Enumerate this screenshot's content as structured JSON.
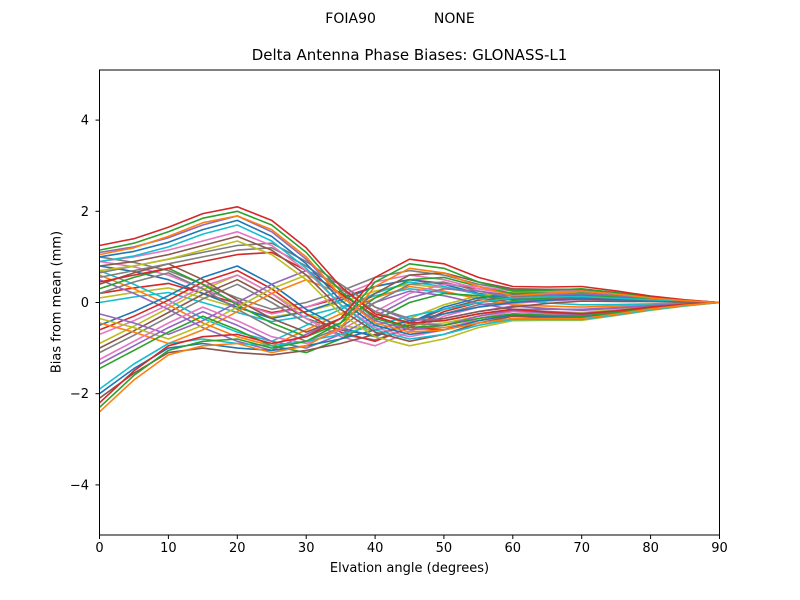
{
  "header": {
    "left_label": "FOIA90",
    "right_label": "NONE"
  },
  "chart_data": {
    "type": "line",
    "title": "Delta Antenna Phase Biases: GLONASS-L1",
    "suptitle": "FOIA90          NONE",
    "xlabel": "Elvation angle (degrees)",
    "ylabel": "Bias from mean (mm)",
    "xlim": [
      0,
      90
    ],
    "ylim": [
      -5.1,
      5.1
    ],
    "xticks": [
      0,
      10,
      20,
      30,
      40,
      50,
      60,
      70,
      80,
      90
    ],
    "xtick_labels": [
      "0",
      "10",
      "20",
      "30",
      "40",
      "50",
      "60",
      "70",
      "80",
      "90"
    ],
    "yticks": [
      -4,
      -2,
      0,
      2,
      4
    ],
    "ytick_labels": [
      "−4",
      "−2",
      "0",
      "2",
      "4"
    ],
    "grid": false,
    "legend": null,
    "line_width": 1.6,
    "color_cycle": [
      "#1f77b4",
      "#ff7f0e",
      "#2ca02c",
      "#d62728",
      "#9467bd",
      "#8c564b",
      "#e377c2",
      "#7f7f7f",
      "#bcbd22",
      "#17becf"
    ],
    "x": [
      0,
      5,
      10,
      15,
      20,
      25,
      30,
      35,
      40,
      45,
      50,
      55,
      60,
      65,
      70,
      75,
      80,
      85,
      90
    ],
    "variant_offsets": [
      0,
      0.1,
      -0.1
    ],
    "offset_taper": [
      1,
      1,
      1,
      1,
      1,
      1,
      1,
      1,
      1,
      1,
      1,
      1,
      1,
      0.7,
      0.5,
      0.35,
      0.2,
      0.1,
      0
    ],
    "shapes": [
      {
        "name": "mid-ripple",
        "colors": [
          "#bcbd22",
          "#d62728",
          "#17becf"
        ],
        "y": [
          0.1,
          0.22,
          0.32,
          0.1,
          -0.12,
          -0.32,
          -0.2,
          0.0,
          0.25,
          0.4,
          0.32,
          0.2,
          0.1,
          0.12,
          0.14,
          0.1,
          0.06,
          0.02,
          0
        ]
      },
      {
        "name": "upper-drift",
        "colors": [
          "#e377c2",
          "#7f7f7f",
          "#1f77b4"
        ],
        "y": [
          0.9,
          0.78,
          0.6,
          0.3,
          0.0,
          -0.25,
          -0.1,
          0.15,
          0.45,
          0.6,
          0.5,
          0.3,
          0.18,
          0.2,
          0.22,
          0.16,
          0.1,
          0.04,
          0
        ]
      },
      {
        "name": "low-swing",
        "colors": [
          "#8c564b",
          "#bcbd22",
          "#7f7f7f"
        ],
        "y": [
          -1.0,
          -0.62,
          -0.22,
          0.18,
          0.5,
          0.1,
          -0.35,
          -0.6,
          -0.72,
          -0.45,
          -0.15,
          0.05,
          0.12,
          0.14,
          0.16,
          0.12,
          0.07,
          0.03,
          0
        ]
      },
      {
        "name": "braid-down",
        "colors": [
          "#ff7f0e",
          "#17becf",
          "#9467bd"
        ],
        "y": [
          0.6,
          0.3,
          -0.05,
          -0.45,
          -0.75,
          -0.95,
          -0.6,
          -0.25,
          0.1,
          0.35,
          0.25,
          0.08,
          -0.05,
          -0.08,
          -0.1,
          -0.08,
          -0.05,
          -0.02,
          0
        ]
      },
      {
        "name": "braid-up",
        "colors": [
          "#d62728",
          "#1f77b4",
          "#e377c2"
        ],
        "y": [
          -0.6,
          -0.3,
          0.05,
          0.45,
          0.7,
          0.3,
          -0.25,
          -0.65,
          -0.85,
          -0.55,
          -0.2,
          0.0,
          0.08,
          0.1,
          0.12,
          0.09,
          0.05,
          0.02,
          0
        ]
      },
      {
        "name": "zigzag-a",
        "colors": [
          "#2ca02c",
          "#8c564b",
          "#7f7f7f"
        ],
        "y": [
          0.3,
          0.55,
          0.75,
          0.4,
          -0.05,
          -0.45,
          -0.75,
          -0.45,
          0.1,
          0.5,
          0.55,
          0.35,
          0.2,
          0.22,
          0.24,
          0.18,
          0.1,
          0.04,
          0
        ]
      },
      {
        "name": "zigzag-b",
        "colors": [
          "#bcbd22",
          "#9467bd",
          "#ff7f0e"
        ],
        "y": [
          -0.35,
          -0.55,
          -0.8,
          -0.5,
          -0.1,
          0.3,
          0.6,
          0.3,
          -0.2,
          -0.5,
          -0.45,
          -0.3,
          -0.18,
          -0.2,
          -0.22,
          -0.16,
          -0.09,
          -0.04,
          0
        ]
      },
      {
        "name": "low-braid",
        "colors": [
          "#9467bd",
          "#e377c2",
          "#2ca02c"
        ],
        "y": [
          -1.35,
          -0.95,
          -0.55,
          -0.2,
          -0.5,
          -0.85,
          -1.0,
          -0.7,
          -0.3,
          0.1,
          0.3,
          0.25,
          0.15,
          0.17,
          0.2,
          0.15,
          0.09,
          0.04,
          0
        ]
      },
      {
        "name": "low-flat",
        "colors": [
          "#1f77b4",
          "#17becf",
          "#8c564b"
        ],
        "y": [
          -2.0,
          -1.45,
          -1.0,
          -0.9,
          -1.0,
          -1.05,
          -0.95,
          -0.8,
          -0.6,
          -0.4,
          -0.25,
          -0.1,
          0.0,
          0.05,
          0.08,
          0.06,
          0.04,
          0.02,
          0
        ]
      },
      {
        "name": "gray-peak",
        "colors": [
          "#7f7f7f",
          "#7f7f7f",
          "#d62728"
        ],
        "y": [
          0.55,
          0.7,
          0.85,
          1.0,
          1.15,
          1.2,
          0.8,
          0.3,
          -0.2,
          -0.45,
          -0.5,
          -0.35,
          -0.25,
          -0.27,
          -0.29,
          -0.21,
          -0.12,
          -0.05,
          0
        ]
      },
      {
        "name": "peak-low",
        "colors": [
          "#8c564b",
          "#e377c2",
          "#bcbd22"
        ],
        "y": [
          0.8,
          0.9,
          1.05,
          1.25,
          1.45,
          1.15,
          0.6,
          -0.15,
          -0.65,
          -0.85,
          -0.7,
          -0.45,
          -0.3,
          -0.32,
          -0.34,
          -0.25,
          -0.15,
          -0.07,
          0
        ]
      },
      {
        "name": "peak-mid",
        "colors": [
          "#1f77b4",
          "#9467bd",
          "#17becf"
        ],
        "y": [
          1.0,
          1.12,
          1.32,
          1.6,
          1.8,
          1.45,
          0.85,
          0.05,
          -0.5,
          -0.7,
          -0.6,
          -0.4,
          -0.27,
          -0.3,
          -0.32,
          -0.24,
          -0.14,
          -0.06,
          0
        ]
      },
      {
        "name": "peak-top",
        "colors": [
          "#2ca02c",
          "#d62728",
          "#ff7f0e"
        ],
        "y": [
          1.15,
          1.3,
          1.55,
          1.85,
          2.0,
          1.7,
          1.1,
          0.25,
          -0.35,
          -0.55,
          -0.5,
          -0.35,
          -0.25,
          -0.28,
          -0.3,
          -0.22,
          -0.12,
          -0.05,
          0
        ]
      },
      {
        "name": "deep-risers",
        "colors": [
          "#2ca02c",
          "#d62728",
          "#ff7f0e"
        ],
        "y": [
          -2.3,
          -1.6,
          -1.05,
          -0.85,
          -0.8,
          -1.0,
          -0.85,
          -0.45,
          0.45,
          0.85,
          0.75,
          0.45,
          0.25,
          0.27,
          0.3,
          0.22,
          0.12,
          0.05,
          0
        ]
      }
    ]
  }
}
